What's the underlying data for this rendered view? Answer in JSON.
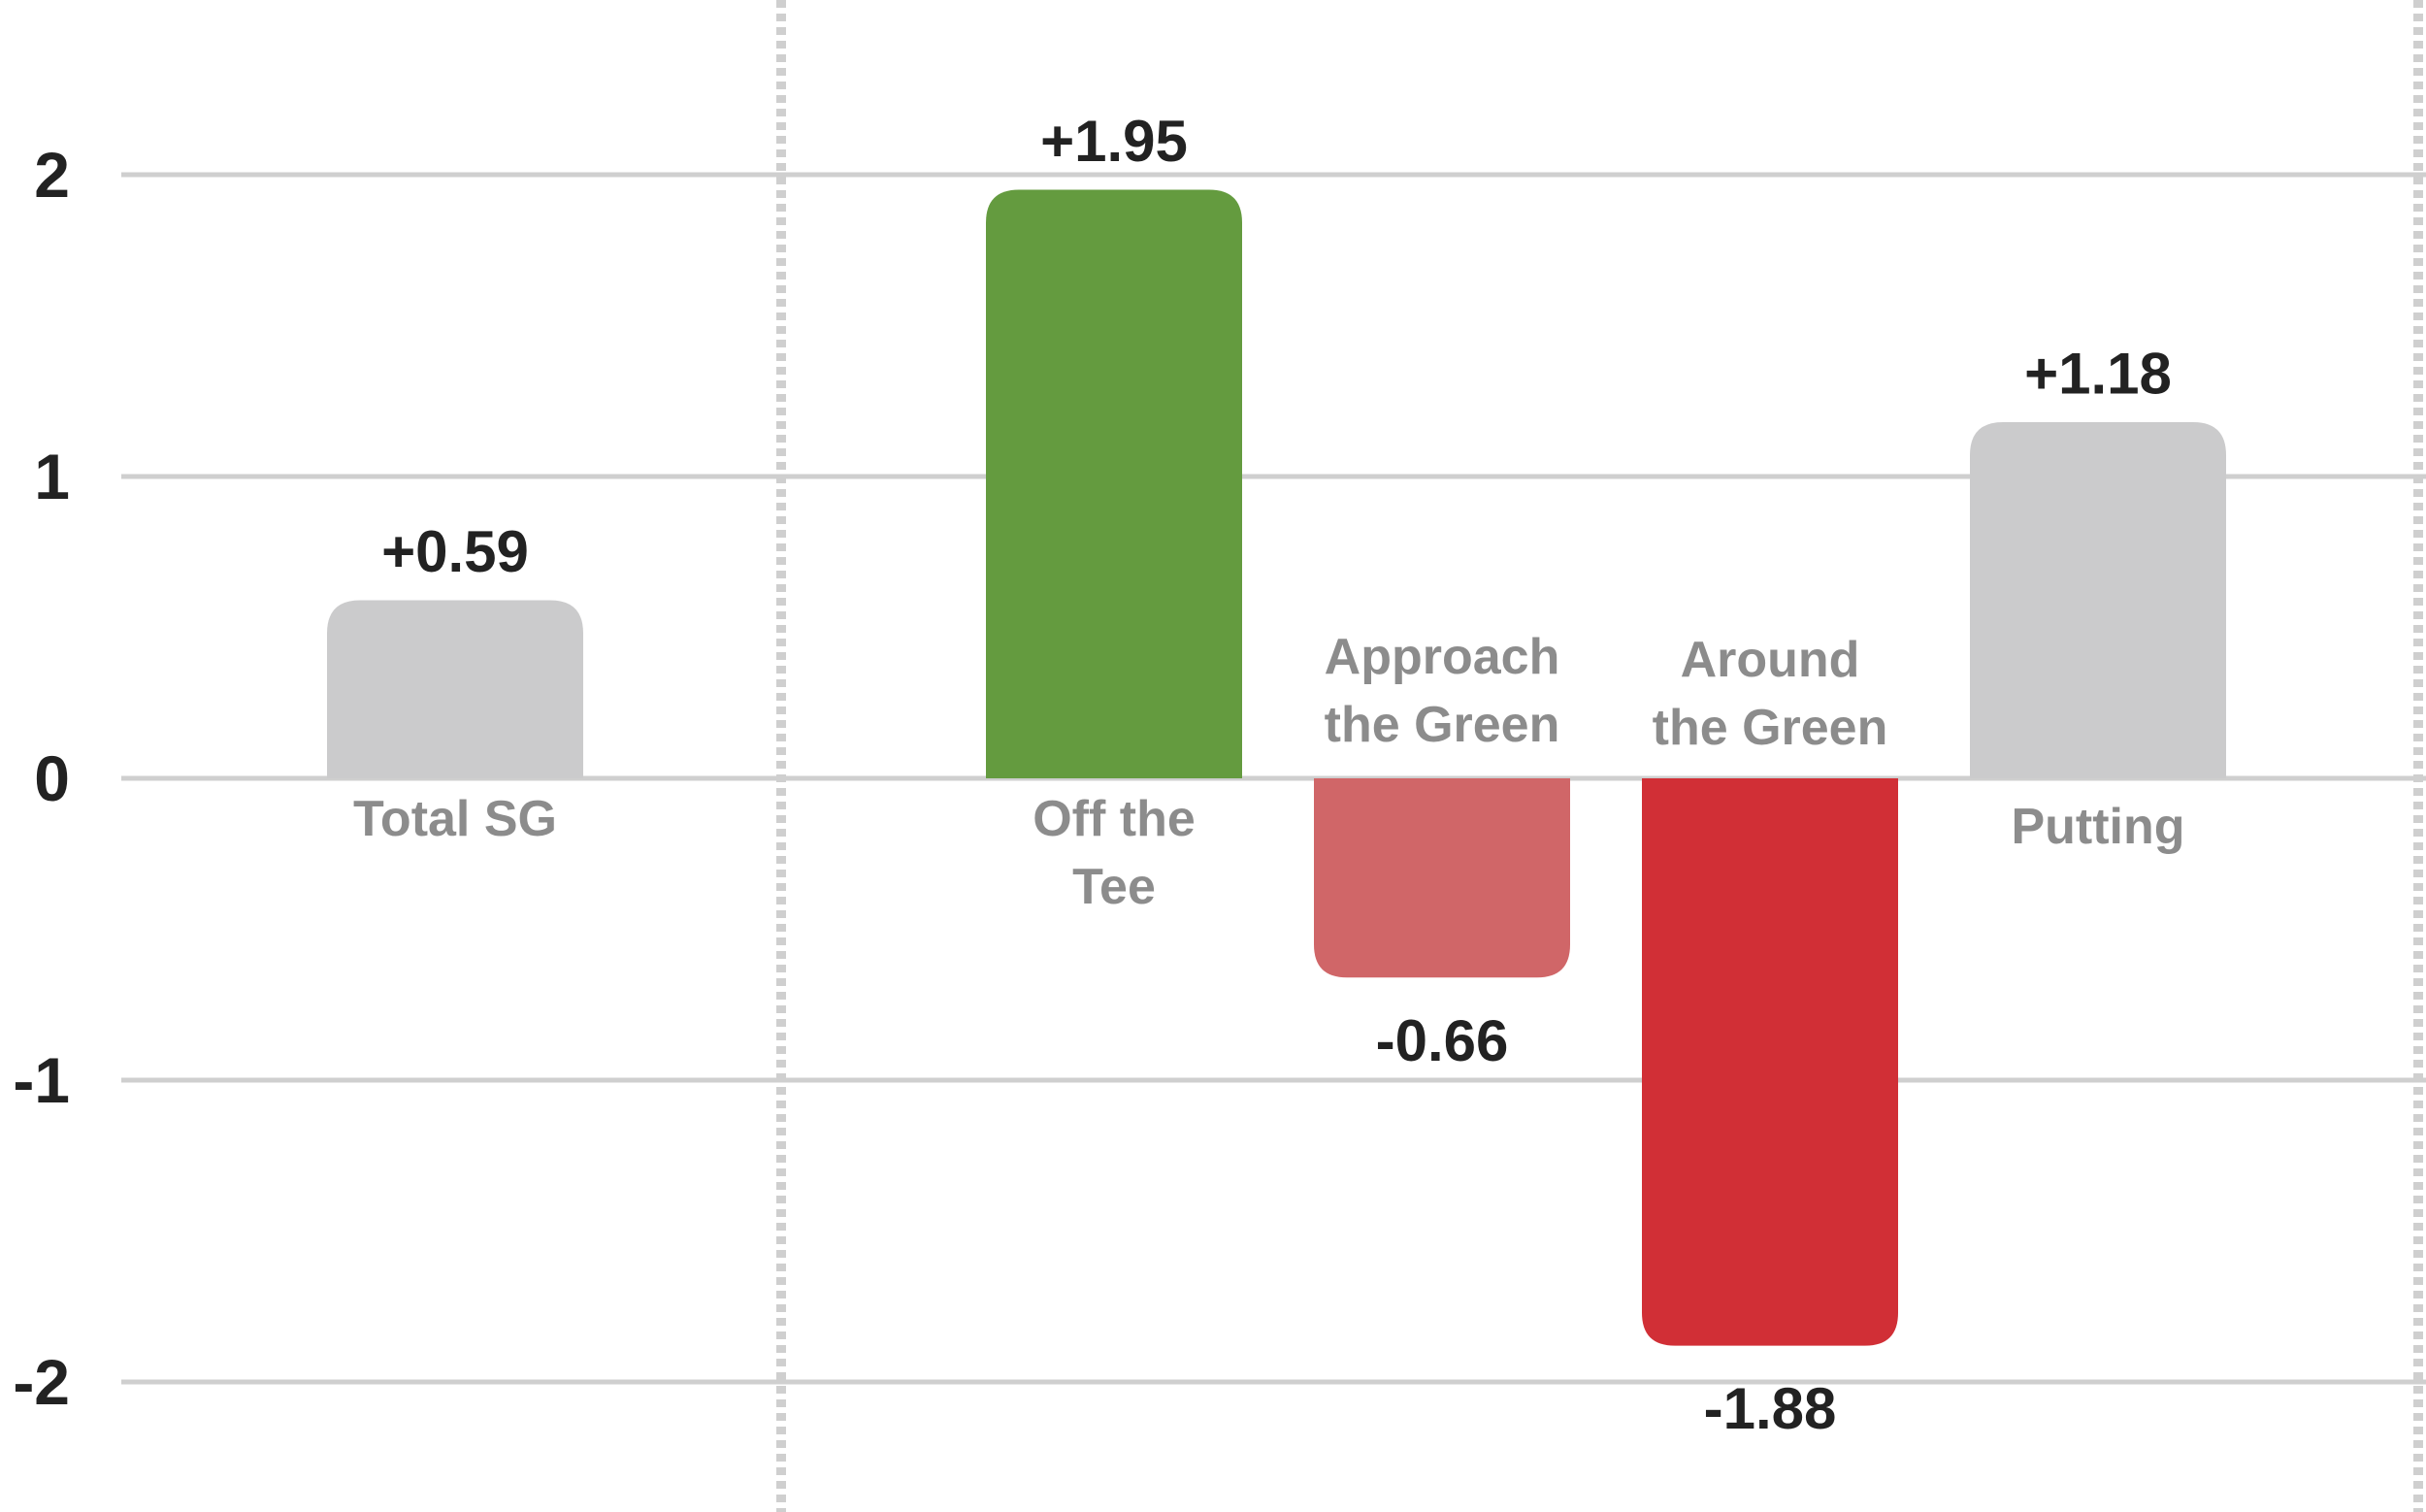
{
  "chart_data": {
    "type": "bar",
    "categories": [
      [
        "Total SG"
      ],
      [
        "Off the",
        "Tee"
      ],
      [
        "Approach",
        "the Green"
      ],
      [
        "Around",
        "the Green"
      ],
      [
        "Putting"
      ]
    ],
    "values": [
      0.59,
      1.95,
      -0.66,
      -1.88,
      1.18
    ],
    "value_labels": [
      "+0.59",
      "+1.95",
      "-0.66",
      "-1.88",
      "+1.18"
    ],
    "bar_colors": [
      "#cbcbcc",
      "#649b3f",
      "#d06668",
      "#d12f36",
      "#cbcbcc"
    ],
    "yticks": [
      {
        "value": 2,
        "label": "2"
      },
      {
        "value": 1,
        "label": "1"
      },
      {
        "value": 0,
        "label": "0"
      },
      {
        "value": -1,
        "label": "-1"
      },
      {
        "value": -2,
        "label": "-2"
      }
    ],
    "ylim": [
      -2.45,
      2.55
    ],
    "title": "",
    "xlabel": "",
    "ylabel": "",
    "grid": true,
    "colors": {
      "grid": "#cfcfcf",
      "divider": "#cfcfcf",
      "tick_text": "#222222",
      "category_text": "#8c8c8c"
    }
  }
}
